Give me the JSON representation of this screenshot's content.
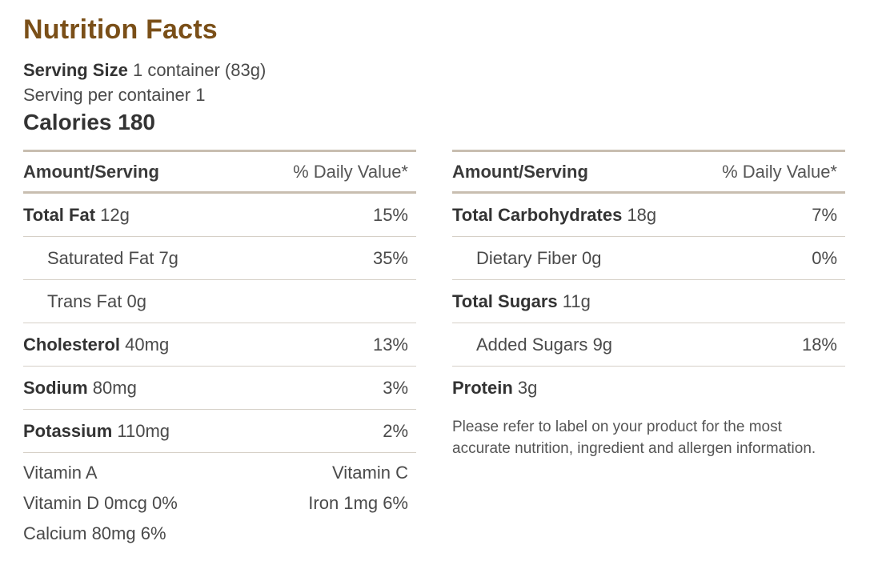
{
  "title": "Nutrition Facts",
  "serving_size": {
    "label": "Serving Size",
    "value": "1 container (83g)"
  },
  "serving_per_container": "Serving per container 1",
  "calories": "Calories 180",
  "header": {
    "amount": "Amount/Serving",
    "daily_value": "% Daily Value*"
  },
  "left_rows": [
    {
      "label": "Total Fat",
      "amount": "12g",
      "pct": "15%",
      "bold": true
    },
    {
      "label": "Saturated Fat",
      "amount": "7g",
      "pct": "35%",
      "bold": false
    },
    {
      "label": "Trans Fat",
      "amount": "0g",
      "pct": "",
      "bold": false
    },
    {
      "label": "Cholesterol",
      "amount": "40mg",
      "pct": "13%",
      "bold": true
    },
    {
      "label": "Sodium",
      "amount": "80mg",
      "pct": "3%",
      "bold": true
    },
    {
      "label": "Potassium",
      "amount": "110mg",
      "pct": "2%",
      "bold": true
    }
  ],
  "vitamins": [
    {
      "left": "Vitamin A",
      "right": "Vitamin C"
    },
    {
      "left": "Vitamin D 0mcg 0%",
      "right": "Iron 1mg 6%"
    },
    {
      "left": "Calcium 80mg 6%",
      "right": ""
    }
  ],
  "right_rows": [
    {
      "label": "Total Carbohydrates",
      "amount": "18g",
      "pct": "7%",
      "bold": true
    },
    {
      "label": "Dietary Fiber",
      "amount": "0g",
      "pct": "0%",
      "bold": false
    },
    {
      "label": "Total Sugars",
      "amount": "11g",
      "pct": "",
      "bold": true
    },
    {
      "label": "Added Sugars",
      "amount": "9g",
      "pct": "18%",
      "bold": false
    },
    {
      "label": "Protein",
      "amount": "3g",
      "pct": "",
      "bold": true
    }
  ],
  "note": "Please refer to label on your product for the most accurate nutrition, ingredient and allergen information."
}
